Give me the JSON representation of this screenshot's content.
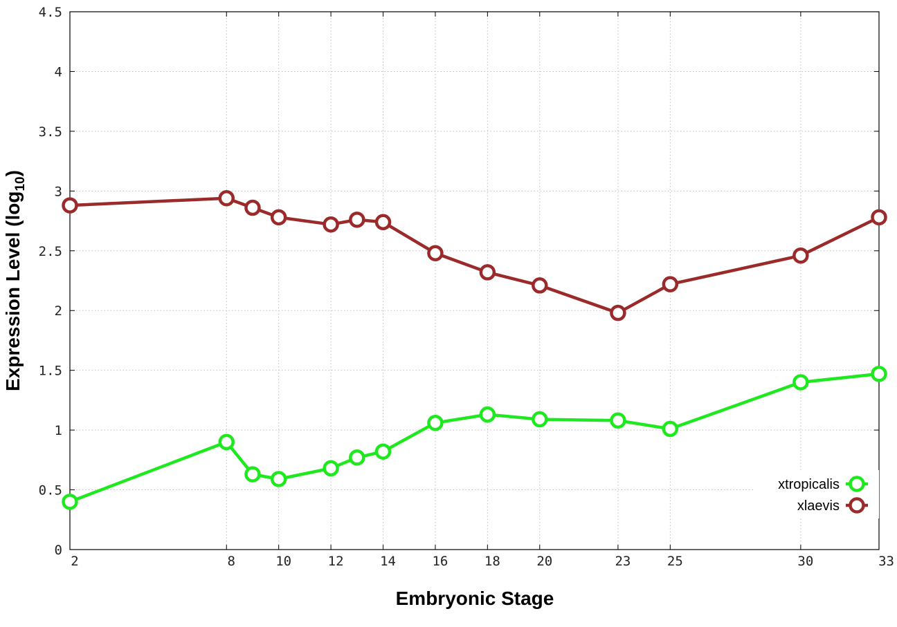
{
  "chart_data": {
    "type": "line",
    "xlabel": "Embryonic Stage",
    "ylabel_main": "Expression Level (log",
    "ylabel_sub": "10",
    "ylabel_close": ")",
    "xlim": [
      2,
      33
    ],
    "ylim": [
      0,
      4.5
    ],
    "x_ticks": [
      "2",
      "8",
      "10",
      "12",
      "14",
      "16",
      "18",
      "20",
      "23",
      "25",
      "30",
      "33"
    ],
    "y_ticks": [
      "0",
      "0.5",
      "1",
      "1.5",
      "2",
      "2.5",
      "3",
      "3.5",
      "4",
      "4.5"
    ],
    "grid": true,
    "legend_position": "lower-right",
    "x": [
      2,
      8,
      9,
      10,
      12,
      13,
      14,
      16,
      18,
      20,
      23,
      25,
      30,
      33
    ],
    "series": [
      {
        "name": "xtropicalis",
        "color": "#1ee81e",
        "values": [
          0.4,
          0.9,
          0.63,
          0.59,
          0.68,
          0.77,
          0.82,
          1.06,
          1.13,
          1.09,
          1.08,
          1.01,
          1.4,
          1.47
        ]
      },
      {
        "name": "xlaevis",
        "color": "#9b2a2a",
        "values": [
          2.88,
          2.94,
          2.86,
          2.78,
          2.72,
          2.76,
          2.74,
          2.48,
          2.32,
          2.21,
          1.98,
          2.22,
          2.46,
          2.78
        ]
      }
    ]
  }
}
